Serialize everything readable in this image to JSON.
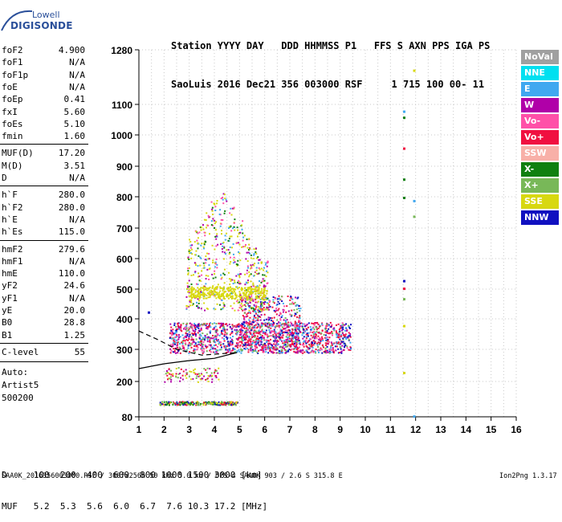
{
  "logo": {
    "line1": "Lowell",
    "line2": "DIGISONDE"
  },
  "header": {
    "line1": "Station YYYY DAY   DDD HHMMSS P1   FFS S AXN PPS IGA PS",
    "line2": "SaoLuis 2016 Dec21 356 003000 RSF     1 715 100 00- 11"
  },
  "params": [
    {
      "label": "foF2",
      "value": "4.900"
    },
    {
      "label": "foF1",
      "value": "N/A"
    },
    {
      "label": "foF1p",
      "value": "N/A"
    },
    {
      "label": "foE",
      "value": "N/A"
    },
    {
      "label": "foEp",
      "value": "0.41"
    },
    {
      "label": "fxI",
      "value": "5.60"
    },
    {
      "label": "foEs",
      "value": "5.10"
    },
    {
      "label": "fmin",
      "value": "1.60"
    },
    {
      "label": "MUF(D)",
      "value": "17.20"
    },
    {
      "label": "M(D)",
      "value": "3.51"
    },
    {
      "label": "D",
      "value": "N/A"
    },
    {
      "label": "h`F",
      "value": "280.0"
    },
    {
      "label": "h`F2",
      "value": "280.0"
    },
    {
      "label": "h`E",
      "value": "N/A"
    },
    {
      "label": "h`Es",
      "value": "115.0"
    },
    {
      "label": "hmF2",
      "value": "279.6"
    },
    {
      "label": "hmF1",
      "value": "N/A"
    },
    {
      "label": "hmE",
      "value": "110.0"
    },
    {
      "label": "yF2",
      "value": "24.6"
    },
    {
      "label": "yF1",
      "value": "N/A"
    },
    {
      "label": "yE",
      "value": "20.0"
    },
    {
      "label": "B0",
      "value": "28.8"
    },
    {
      "label": "B1",
      "value": "1.25"
    },
    {
      "label": "C-level",
      "value": "55"
    }
  ],
  "auto": {
    "label": "Auto:",
    "artist": "Artist5",
    "version": "500200"
  },
  "legend": [
    {
      "label": "NoVal",
      "color": "#a0a0a0"
    },
    {
      "label": "NNE",
      "color": "#00e0f0"
    },
    {
      "label": "E",
      "color": "#40a8f0"
    },
    {
      "label": "W",
      "color": "#b000a8"
    },
    {
      "label": "Vo-",
      "color": "#ff50a8"
    },
    {
      "label": "Vo+",
      "color": "#f01040"
    },
    {
      "label": "SSW",
      "color": "#f8b0a8"
    },
    {
      "label": "X-",
      "color": "#108010"
    },
    {
      "label": "X+",
      "color": "#78b858"
    },
    {
      "label": "SSE",
      "color": "#d8d810"
    },
    {
      "label": "NNW",
      "color": "#1010c0"
    }
  ],
  "footer": {
    "d_row": "D     100  200  400  600  800 1000 1500 3000 [km]",
    "muf_row": "MUF   5.2  5.3  5.6  6.0  6.7  7.6 10.3 17.2 [MHz]",
    "source": "SAA0K_2016356003000.RSF / 300fx256h 50 kHz 5.0 km / DPS-4 SAA0K 903 / 2.6 S 315.8 E",
    "version": "Ion2Png 1.3.17"
  },
  "chart_data": {
    "type": "scatter",
    "x_ticks": [
      1,
      2,
      3,
      4,
      5,
      6,
      7,
      8,
      9,
      10,
      11,
      12,
      13,
      14,
      15,
      16
    ],
    "y_ticks": [
      80,
      200,
      300,
      400,
      500,
      600,
      700,
      800,
      900,
      1000,
      1100,
      1280
    ],
    "xlim": [
      1,
      16
    ],
    "ylim": [
      80,
      1280
    ],
    "grid": true,
    "yscale": "nonlinear",
    "traces": [
      {
        "name": "Es layer trace",
        "color": "#f01040",
        "x": [
          1.8,
          4.9
        ],
        "y": [
          128,
          128
        ]
      },
      {
        "name": "Es mixed trace",
        "color": "#b000a8",
        "x": [
          2.0,
          4.2
        ],
        "y": [
          210,
          210
        ]
      },
      {
        "name": "F layer band",
        "color": "#f01040",
        "x": [
          2.2,
          9.5
        ],
        "y": [
          300,
          380
        ]
      },
      {
        "name": "oblique echoes",
        "color": "#d8d810",
        "x": [
          3.0,
          6.0
        ],
        "y": [
          420,
          800
        ]
      },
      {
        "name": "X+ points",
        "color": "#78b858",
        "x": [
          2.5,
          6.5
        ],
        "y": [
          320,
          410
        ]
      }
    ],
    "profile": {
      "solid": [
        [
          1.0,
          240
        ],
        [
          2.0,
          255
        ],
        [
          3.0,
          265
        ],
        [
          4.0,
          272
        ],
        [
          4.9,
          290
        ]
      ],
      "dashed": [
        [
          1.0,
          360
        ],
        [
          1.8,
          330
        ],
        [
          2.5,
          300
        ],
        [
          3.5,
          282
        ],
        [
          4.9,
          290
        ]
      ]
    },
    "isolated_points": [
      {
        "x": 11.5,
        "y": 1080,
        "color": "#40a8f0"
      },
      {
        "x": 11.5,
        "y": 1060,
        "color": "#108010"
      },
      {
        "x": 11.5,
        "y": 960,
        "color": "#f01040"
      },
      {
        "x": 11.5,
        "y": 860,
        "color": "#108010"
      },
      {
        "x": 11.5,
        "y": 800,
        "color": "#108010"
      },
      {
        "x": 11.5,
        "y": 530,
        "color": "#1010c0"
      },
      {
        "x": 11.5,
        "y": 505,
        "color": "#f01040"
      },
      {
        "x": 11.5,
        "y": 470,
        "color": "#78b858"
      },
      {
        "x": 11.5,
        "y": 380,
        "color": "#d8d810"
      },
      {
        "x": 11.5,
        "y": 230,
        "color": "#d8d810"
      },
      {
        "x": 11.9,
        "y": 1215,
        "color": "#d8d810"
      },
      {
        "x": 11.9,
        "y": 790,
        "color": "#40a8f0"
      },
      {
        "x": 11.9,
        "y": 740,
        "color": "#78b858"
      },
      {
        "x": 11.9,
        "y": 85,
        "color": "#40a8f0"
      },
      {
        "x": 1.35,
        "y": 425,
        "color": "#1010c0"
      }
    ]
  }
}
